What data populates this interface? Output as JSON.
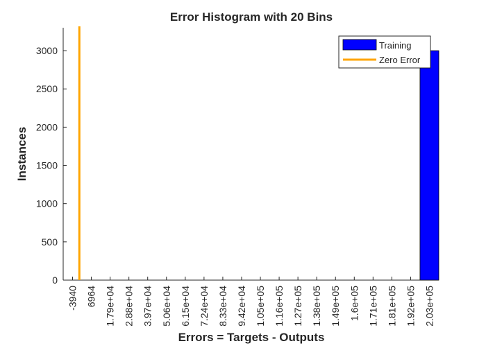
{
  "chart_data": {
    "type": "bar",
    "title": "Error Histogram with 20 Bins",
    "xlabel": "Errors = Targets - Outputs",
    "ylabel": "Instances",
    "categories": [
      "-3940",
      "6964",
      "1.79e+04",
      "2.88e+04",
      "3.97e+04",
      "5.06e+04",
      "6.15e+04",
      "7.24e+04",
      "8.33e+04",
      "9.42e+04",
      "1.05e+05",
      "1.16e+05",
      "1.27e+05",
      "1.38e+05",
      "1.49e+05",
      "1.6e+05",
      "1.71e+05",
      "1.81e+05",
      "1.92e+05",
      "2.03e+05"
    ],
    "series": [
      {
        "name": "Training",
        "color": "#0000ff",
        "values": [
          0,
          0,
          0,
          0,
          0,
          0,
          0,
          0,
          0,
          0,
          0,
          0,
          0,
          0,
          0,
          0,
          0,
          0,
          0,
          3000
        ]
      }
    ],
    "reference_line": {
      "name": "Zero Error",
      "x": 0,
      "color": "#ffa500"
    },
    "ylim": [
      0,
      3300
    ],
    "yticks": [
      0,
      500,
      1000,
      1500,
      2000,
      2500,
      3000
    ],
    "grid": false,
    "legend_position": "top-right"
  }
}
